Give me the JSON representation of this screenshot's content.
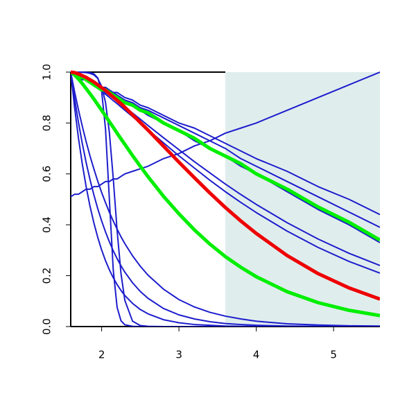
{
  "chart_data": {
    "type": "line",
    "x": [
      1.6,
      1.65,
      1.7,
      1.75,
      1.8,
      1.85,
      1.9,
      1.95,
      2.0,
      2.05,
      2.1,
      2.15,
      2.2,
      2.25,
      2.3,
      2.4,
      2.5,
      2.6,
      2.8,
      3.0,
      3.2,
      3.4,
      3.6,
      3.8,
      4.0,
      4.4,
      4.8,
      5.2,
      5.6
    ],
    "xlim": [
      1.6,
      5.6
    ],
    "xticks": [
      2,
      3,
      4,
      5
    ],
    "ylim": [
      0,
      1
    ],
    "yticks": [
      {
        "value": 0,
        "label": "0.0"
      },
      0.2,
      0.4,
      0.6,
      0.8,
      {
        "value": 1,
        "label": "1.0"
      }
    ],
    "highlight_x": [
      3.6,
      5.6
    ],
    "highlight_color": "#e0eded",
    "series": [
      {
        "color": "#1c1ccc",
        "width": 2,
        "values": [
          0.51,
          0.52,
          0.52,
          0.53,
          0.54,
          0.54,
          0.55,
          0.55,
          0.56,
          0.57,
          0.57,
          0.58,
          0.58,
          0.59,
          0.6,
          0.61,
          0.62,
          0.63,
          0.66,
          0.68,
          0.71,
          0.73,
          0.76,
          0.78,
          0.8,
          0.85,
          0.9,
          0.95,
          1.0
        ]
      },
      {
        "color": "#1c1ccc",
        "width": 2,
        "values": [
          1,
          0.99,
          0.99,
          0.98,
          0.97,
          0.97,
          0.96,
          0.95,
          0.94,
          0.94,
          0.93,
          0.92,
          0.92,
          0.91,
          0.9,
          0.89,
          0.87,
          0.86,
          0.83,
          0.8,
          0.78,
          0.75,
          0.72,
          0.69,
          0.66,
          0.61,
          0.55,
          0.5,
          0.44
        ]
      },
      {
        "color": "#1c1ccc",
        "width": 2,
        "values": [
          1,
          0.99,
          0.98,
          0.98,
          0.97,
          0.96,
          0.95,
          0.95,
          0.94,
          0.93,
          0.92,
          0.92,
          0.91,
          0.9,
          0.89,
          0.88,
          0.86,
          0.85,
          0.82,
          0.79,
          0.76,
          0.73,
          0.7,
          0.66,
          0.63,
          0.57,
          0.51,
          0.45,
          0.39
        ]
      },
      {
        "color": "#1c1ccc",
        "width": 2,
        "values": [
          1,
          0.99,
          0.98,
          0.97,
          0.97,
          0.96,
          0.95,
          0.94,
          0.93,
          0.92,
          0.92,
          0.91,
          0.9,
          0.89,
          0.88,
          0.87,
          0.85,
          0.83,
          0.8,
          0.77,
          0.73,
          0.7,
          0.67,
          0.63,
          0.6,
          0.53,
          0.46,
          0.4,
          0.33
        ]
      },
      {
        "color": "#1c1ccc",
        "width": 2,
        "values": [
          1,
          0.995,
          0.988,
          0.98,
          0.971,
          0.962,
          0.952,
          0.942,
          0.931,
          0.92,
          0.909,
          0.897,
          0.886,
          0.874,
          0.862,
          0.839,
          0.815,
          0.79,
          0.742,
          0.695,
          0.648,
          0.604,
          0.56,
          0.519,
          0.48,
          0.408,
          0.344,
          0.288,
          0.24
        ]
      },
      {
        "color": "#1c1ccc",
        "width": 2,
        "values": [
          1,
          0.995,
          0.987,
          0.978,
          0.969,
          0.958,
          0.948,
          0.936,
          0.925,
          0.913,
          0.901,
          0.888,
          0.876,
          0.863,
          0.85,
          0.825,
          0.799,
          0.773,
          0.722,
          0.671,
          0.623,
          0.575,
          0.53,
          0.488,
          0.448,
          0.375,
          0.311,
          0.256,
          0.21
        ]
      },
      {
        "color": "#1c1ccc",
        "width": 2,
        "values": [
          1,
          1,
          1,
          1,
          0.999,
          0.998,
          0.993,
          0.977,
          0.924,
          0.777,
          0.5,
          0.223,
          0.076,
          0.023,
          0.007,
          0.001,
          0,
          0,
          0,
          0,
          0,
          0,
          0,
          0,
          0,
          0,
          0,
          0,
          0
        ]
      },
      {
        "color": "#1c1ccc",
        "width": 2,
        "values": [
          1,
          1,
          1,
          0.999,
          0.998,
          0.995,
          0.989,
          0.975,
          0.944,
          0.881,
          0.763,
          0.583,
          0.378,
          0.209,
          0.103,
          0.021,
          0.004,
          0.001,
          0,
          0,
          0,
          0,
          0,
          0,
          0,
          0,
          0,
          0,
          0
        ]
      },
      {
        "color": "#1c1ccc",
        "width": 2,
        "values": [
          1,
          0.923,
          0.852,
          0.787,
          0.726,
          0.67,
          0.619,
          0.571,
          0.527,
          0.487,
          0.449,
          0.415,
          0.383,
          0.353,
          0.326,
          0.278,
          0.237,
          0.202,
          0.147,
          0.106,
          0.077,
          0.056,
          0.041,
          0.03,
          0.021,
          0.011,
          0.006,
          0.003,
          0.002
        ]
      },
      {
        "color": "#1c1ccc",
        "width": 2,
        "values": [
          1,
          0.896,
          0.803,
          0.719,
          0.644,
          0.577,
          0.517,
          0.463,
          0.415,
          0.372,
          0.333,
          0.298,
          0.267,
          0.239,
          0.214,
          0.172,
          0.138,
          0.111,
          0.071,
          0.046,
          0.03,
          0.019,
          0.012,
          0.008,
          0.005,
          0.002,
          0.001,
          0,
          0
        ]
      },
      {
        "color": "#1c1ccc",
        "width": 2,
        "values": [
          1,
          0.861,
          0.741,
          0.638,
          0.549,
          0.472,
          0.407,
          0.35,
          0.301,
          0.259,
          0.223,
          0.192,
          0.165,
          0.142,
          0.122,
          0.091,
          0.067,
          0.05,
          0.027,
          0.015,
          0.008,
          0.005,
          0.002,
          0.001,
          0.001,
          0,
          0,
          0,
          0
        ]
      },
      {
        "color": "#00ee00",
        "width": 5,
        "values": [
          1,
          0.99,
          0.98,
          0.98,
          0.97,
          0.96,
          0.95,
          0.94,
          0.93,
          0.93,
          0.92,
          0.91,
          0.9,
          0.89,
          0.88,
          0.87,
          0.85,
          0.84,
          0.8,
          0.77,
          0.74,
          0.7,
          0.67,
          0.64,
          0.6,
          0.54,
          0.47,
          0.41,
          0.34
        ]
      },
      {
        "color": "#00ee00",
        "width": 5,
        "values": [
          1,
          0.989,
          0.973,
          0.955,
          0.935,
          0.915,
          0.894,
          0.872,
          0.85,
          0.828,
          0.805,
          0.783,
          0.76,
          0.738,
          0.716,
          0.672,
          0.63,
          0.589,
          0.512,
          0.443,
          0.38,
          0.324,
          0.275,
          0.233,
          0.196,
          0.137,
          0.094,
          0.064,
          0.043
        ]
      },
      {
        "color": "#ee0000",
        "width": 5,
        "values": [
          1,
          0.998,
          0.993,
          0.986,
          0.979,
          0.97,
          0.961,
          0.95,
          0.939,
          0.928,
          0.915,
          0.902,
          0.889,
          0.876,
          0.862,
          0.832,
          0.802,
          0.772,
          0.709,
          0.646,
          0.585,
          0.525,
          0.468,
          0.415,
          0.366,
          0.279,
          0.208,
          0.152,
          0.108
        ]
      }
    ]
  }
}
